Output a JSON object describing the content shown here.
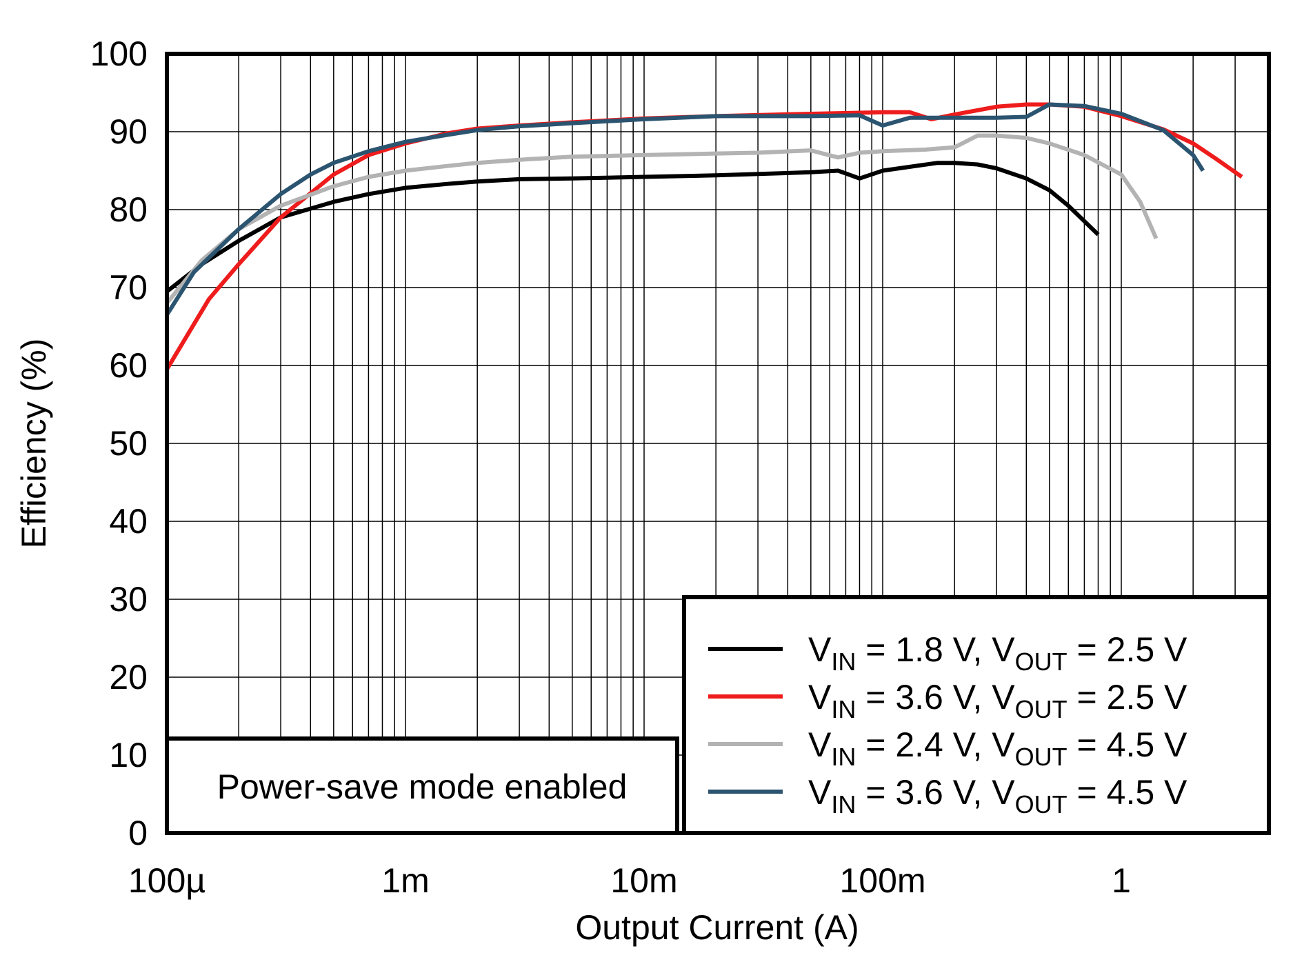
{
  "chart_data": {
    "type": "line",
    "xscale": "log",
    "xlabel": "Output Current (A)",
    "ylabel": "Efficiency (%)",
    "xlim": [
      0.0001,
      4
    ],
    "ylim": [
      0,
      100
    ],
    "grid": true,
    "x_ticks": [
      {
        "value": 0.0001,
        "label": "100µ"
      },
      {
        "value": 0.001,
        "label": "1m"
      },
      {
        "value": 0.01,
        "label": "10m"
      },
      {
        "value": 0.1,
        "label": "100m"
      },
      {
        "value": 1,
        "label": "1"
      }
    ],
    "y_ticks": [
      0,
      10,
      20,
      30,
      40,
      50,
      60,
      70,
      80,
      90,
      100
    ],
    "legend_position": "bottom-right",
    "annotation": "Power-save mode enabled",
    "series": [
      {
        "name": "VIN = 1.8 V, VOUT = 2.5 V",
        "vin_label": "1.8 V",
        "vout_label": "2.5 V",
        "color": "#000000",
        "x": [
          0.0001,
          0.00014,
          0.0002,
          0.0003,
          0.0005,
          0.0007,
          0.001,
          0.0015,
          0.002,
          0.003,
          0.005,
          0.01,
          0.02,
          0.05,
          0.065,
          0.08,
          0.1,
          0.13,
          0.17,
          0.2,
          0.25,
          0.3,
          0.4,
          0.5,
          0.6,
          0.8
        ],
        "y": [
          69.5,
          73.0,
          76.0,
          79.0,
          81.0,
          82.0,
          82.8,
          83.3,
          83.6,
          83.9,
          84.0,
          84.2,
          84.4,
          84.8,
          85.0,
          84.0,
          85.0,
          85.5,
          86.0,
          86.0,
          85.8,
          85.3,
          84.0,
          82.5,
          80.5,
          76.8
        ]
      },
      {
        "name": "VIN = 3.6 V, VOUT = 2.5 V",
        "vin_label": "3.6 V",
        "vout_label": "2.5 V",
        "color": "#ee1c1c",
        "x": [
          0.0001,
          0.00015,
          0.0002,
          0.0003,
          0.0005,
          0.0007,
          0.001,
          0.0015,
          0.002,
          0.003,
          0.005,
          0.01,
          0.02,
          0.05,
          0.1,
          0.13,
          0.16,
          0.2,
          0.3,
          0.4,
          0.5,
          0.7,
          1.0,
          1.5,
          2.0,
          2.5,
          3.2
        ],
        "y": [
          59.5,
          68.5,
          73.0,
          79.0,
          84.5,
          87.0,
          88.5,
          89.8,
          90.4,
          90.8,
          91.2,
          91.7,
          92.0,
          92.3,
          92.5,
          92.5,
          91.6,
          92.2,
          93.2,
          93.5,
          93.5,
          93.2,
          92.0,
          90.3,
          88.5,
          86.5,
          84.2
        ]
      },
      {
        "name": "VIN = 2.4 V, VOUT = 4.5 V",
        "vin_label": "2.4 V",
        "vout_label": "4.5 V",
        "color": "#b3b3b3",
        "x": [
          0.0001,
          0.00014,
          0.0002,
          0.0003,
          0.0005,
          0.0007,
          0.001,
          0.0015,
          0.002,
          0.003,
          0.005,
          0.01,
          0.02,
          0.03,
          0.05,
          0.065,
          0.08,
          0.1,
          0.15,
          0.2,
          0.25,
          0.3,
          0.4,
          0.5,
          0.7,
          1.0,
          1.2,
          1.4
        ],
        "y": [
          68.0,
          73.5,
          77.5,
          80.5,
          83.0,
          84.2,
          85.0,
          85.6,
          86.0,
          86.4,
          86.8,
          87.0,
          87.2,
          87.3,
          87.6,
          86.7,
          87.3,
          87.5,
          87.7,
          88.0,
          89.5,
          89.5,
          89.2,
          88.5,
          87.0,
          84.5,
          81.0,
          76.3
        ]
      },
      {
        "name": "VIN = 3.6 V, VOUT = 4.5 V",
        "vin_label": "3.6 V",
        "vout_label": "4.5 V",
        "color": "#2b5470",
        "x": [
          0.0001,
          0.00013,
          0.0002,
          0.0003,
          0.0004,
          0.0005,
          0.0007,
          0.001,
          0.0015,
          0.002,
          0.003,
          0.005,
          0.01,
          0.02,
          0.05,
          0.08,
          0.1,
          0.13,
          0.2,
          0.3,
          0.4,
          0.5,
          0.7,
          1.0,
          1.5,
          2.0,
          2.2
        ],
        "y": [
          66.5,
          72.0,
          77.5,
          82.0,
          84.5,
          86.0,
          87.5,
          88.7,
          89.6,
          90.2,
          90.7,
          91.1,
          91.6,
          92.0,
          92.0,
          92.1,
          90.8,
          91.8,
          91.8,
          91.8,
          91.9,
          93.5,
          93.3,
          92.3,
          90.2,
          87.0,
          85.0
        ]
      }
    ]
  }
}
